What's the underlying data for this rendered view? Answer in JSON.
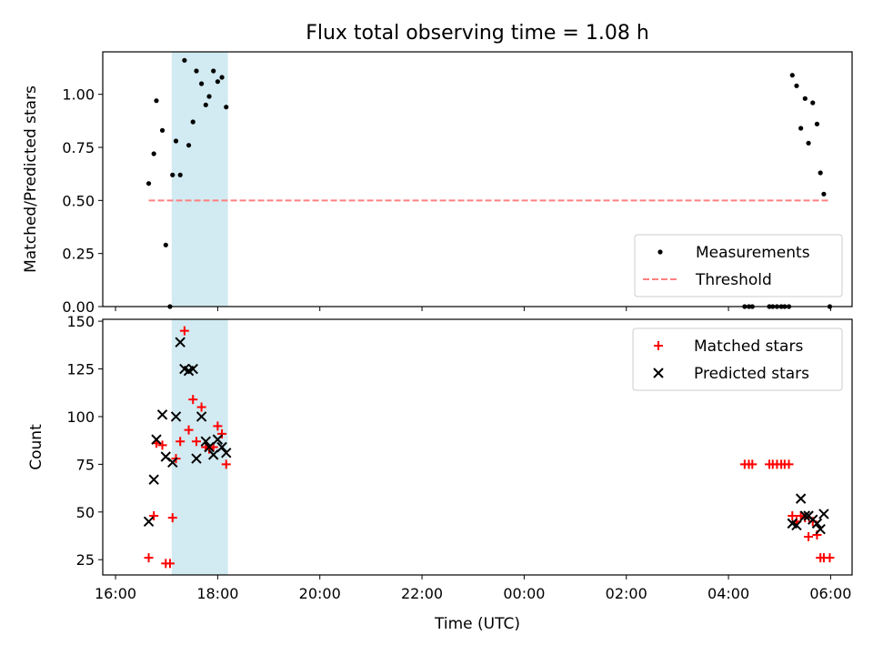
{
  "chart_data": {
    "title": "Flux total observing time = 1.08 h",
    "x_axis": {
      "label": "Time (UTC)",
      "ticks": [
        "16:00",
        "18:00",
        "20:00",
        "22:00",
        "00:00",
        "02:00",
        "04:00",
        "06:00"
      ],
      "tick_hours": [
        0,
        2,
        4,
        6,
        8,
        10,
        12,
        14
      ],
      "range_hours_since_1600": [
        -0.25,
        14.42
      ]
    },
    "highlight_window": {
      "start": "17:06",
      "end": "18:12",
      "color": "#add8e6"
    },
    "panels": [
      {
        "type": "scatter",
        "ylabel": "Matched/Predicted stars",
        "ylim": [
          0,
          1.2
        ],
        "yticks": [
          "0.00",
          "0.25",
          "0.50",
          "0.75",
          "1.00"
        ],
        "ytick_values": [
          0,
          0.25,
          0.5,
          0.75,
          1.0
        ],
        "legend_position": "lower-right",
        "series": [
          {
            "name": "Measurements",
            "marker": "dot",
            "color": "#000000",
            "points": [
              [
                "16:39",
                0.58
              ],
              [
                "16:45",
                0.72
              ],
              [
                "16:48",
                0.97
              ],
              [
                "16:55",
                0.83
              ],
              [
                "16:59",
                0.29
              ],
              [
                "17:04",
                0.0
              ],
              [
                "17:07",
                0.62
              ],
              [
                "17:11",
                0.78
              ],
              [
                "17:16",
                0.62
              ],
              [
                "17:21",
                1.16
              ],
              [
                "17:26",
                0.76
              ],
              [
                "17:31",
                0.87
              ],
              [
                "17:35",
                1.11
              ],
              [
                "17:41",
                1.05
              ],
              [
                "17:46",
                0.95
              ],
              [
                "17:50",
                0.99
              ],
              [
                "17:55",
                1.11
              ],
              [
                "18:00",
                1.06
              ],
              [
                "18:05",
                1.08
              ],
              [
                "18:10",
                0.94
              ],
              [
                "04:19",
                0.0
              ],
              [
                "04:24",
                0.0
              ],
              [
                "04:28",
                0.0
              ],
              [
                "04:48",
                0.0
              ],
              [
                "04:52",
                0.0
              ],
              [
                "04:57",
                0.0
              ],
              [
                "05:02",
                0.0
              ],
              [
                "05:06",
                0.0
              ],
              [
                "05:11",
                0.0
              ],
              [
                "05:15",
                1.09
              ],
              [
                "05:20",
                1.04
              ],
              [
                "05:25",
                0.84
              ],
              [
                "05:30",
                0.98
              ],
              [
                "05:34",
                0.77
              ],
              [
                "05:39",
                0.96
              ],
              [
                "05:44",
                0.86
              ],
              [
                "05:48",
                0.63
              ],
              [
                "05:52",
                0.53
              ],
              [
                "05:59",
                0.0
              ]
            ]
          },
          {
            "name": "Threshold",
            "type": "line",
            "style": "dashed",
            "color": "#ff8080",
            "points": [
              [
                "16:39",
                0.5
              ],
              [
                "05:59",
                0.5
              ]
            ]
          }
        ]
      },
      {
        "type": "scatter",
        "ylabel": "Count",
        "ylim": [
          17,
          151
        ],
        "yticks": [
          "25",
          "50",
          "75",
          "100",
          "125",
          "150"
        ],
        "ytick_values": [
          25,
          50,
          75,
          100,
          125,
          150
        ],
        "legend_position": "upper-right",
        "series": [
          {
            "name": "Matched stars",
            "marker": "plus",
            "color": "#ff0000",
            "points": [
              [
                "16:39",
                26
              ],
              [
                "16:45",
                48
              ],
              [
                "16:48",
                86
              ],
              [
                "16:55",
                85
              ],
              [
                "16:59",
                23
              ],
              [
                "17:04",
                23
              ],
              [
                "17:07",
                47
              ],
              [
                "17:11",
                78
              ],
              [
                "17:16",
                87
              ],
              [
                "17:21",
                145
              ],
              [
                "17:26",
                93
              ],
              [
                "17:31",
                109
              ],
              [
                "17:35",
                87
              ],
              [
                "17:41",
                105
              ],
              [
                "17:46",
                84
              ],
              [
                "17:50",
                83
              ],
              [
                "17:55",
                84
              ],
              [
                "18:00",
                95
              ],
              [
                "18:05",
                91
              ],
              [
                "18:10",
                75
              ],
              [
                "04:19",
                75
              ],
              [
                "04:24",
                75
              ],
              [
                "04:28",
                75
              ],
              [
                "04:48",
                75
              ],
              [
                "04:52",
                75
              ],
              [
                "04:57",
                75
              ],
              [
                "05:02",
                75
              ],
              [
                "05:06",
                75
              ],
              [
                "05:11",
                75
              ],
              [
                "05:15",
                48
              ],
              [
                "05:20",
                45
              ],
              [
                "05:25",
                48
              ],
              [
                "05:30",
                47
              ],
              [
                "05:34",
                37
              ],
              [
                "05:39",
                45
              ],
              [
                "05:44",
                38
              ],
              [
                "05:48",
                26
              ],
              [
                "05:52",
                26
              ],
              [
                "05:59",
                26
              ]
            ]
          },
          {
            "name": "Predicted stars",
            "marker": "x",
            "color": "#000000",
            "points": [
              [
                "16:39",
                45
              ],
              [
                "16:45",
                67
              ],
              [
                "16:48",
                88
              ],
              [
                "16:55",
                101
              ],
              [
                "16:59",
                79
              ],
              [
                "17:07",
                76
              ],
              [
                "17:11",
                100
              ],
              [
                "17:16",
                139
              ],
              [
                "17:21",
                125
              ],
              [
                "17:26",
                124
              ],
              [
                "17:31",
                125
              ],
              [
                "17:35",
                78
              ],
              [
                "17:41",
                100
              ],
              [
                "17:46",
                87
              ],
              [
                "17:50",
                84
              ],
              [
                "17:55",
                80
              ],
              [
                "18:00",
                88
              ],
              [
                "18:05",
                84
              ],
              [
                "18:10",
                81
              ],
              [
                "05:15",
                44
              ],
              [
                "05:20",
                43
              ],
              [
                "05:25",
                57
              ],
              [
                "05:30",
                48
              ],
              [
                "05:34",
                48
              ],
              [
                "05:39",
                46
              ],
              [
                "05:44",
                44
              ],
              [
                "05:48",
                41
              ],
              [
                "05:52",
                49
              ]
            ]
          }
        ]
      }
    ]
  }
}
